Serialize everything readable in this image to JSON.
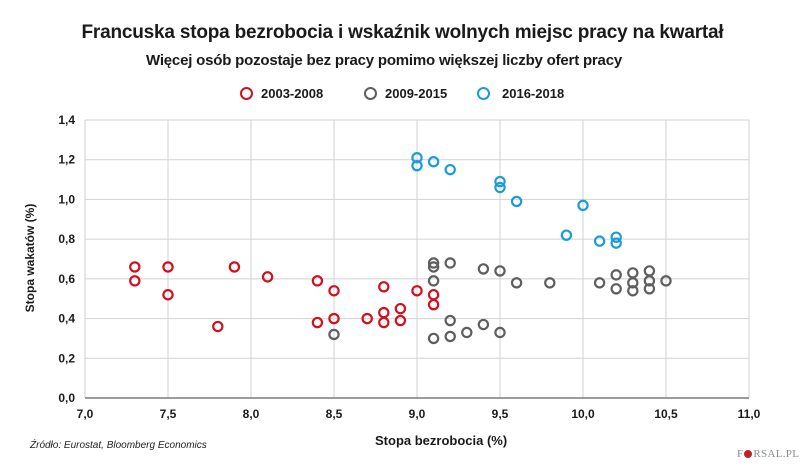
{
  "chart_data": {
    "type": "scatter",
    "title": "Francuska stopa bezrobocia i wskaźnik wolnych miejsc pracy na kwartał",
    "subtitle": "Więcej osób pozostaje bez pracy pomimo większej liczby ofert pracy",
    "xlabel": "Stopa bezrobocia (%)",
    "ylabel": "Stopa wakatów (%)",
    "xlim": [
      7.0,
      11.0
    ],
    "ylim": [
      0.0,
      1.4
    ],
    "xticks": [
      "7,0",
      "7,5",
      "8,0",
      "8,5",
      "9,0",
      "9,5",
      "10,0",
      "10,5",
      "11,0"
    ],
    "xtick_values": [
      7.0,
      7.5,
      8.0,
      8.5,
      9.0,
      9.5,
      10.0,
      10.5,
      11.0
    ],
    "yticks": [
      "0,0",
      "0,2",
      "0,4",
      "0,6",
      "0,8",
      "1,0",
      "1,2",
      "1,4"
    ],
    "ytick_values": [
      0.0,
      0.2,
      0.4,
      0.6,
      0.8,
      1.0,
      1.2,
      1.4
    ],
    "grid": true,
    "legend_position": "top-center",
    "series": [
      {
        "name": "2003-2008",
        "color": "#d0101e",
        "points": [
          [
            7.3,
            0.66
          ],
          [
            7.3,
            0.59
          ],
          [
            7.5,
            0.66
          ],
          [
            7.5,
            0.52
          ],
          [
            7.8,
            0.36
          ],
          [
            7.9,
            0.66
          ],
          [
            8.1,
            0.61
          ],
          [
            8.4,
            0.59
          ],
          [
            8.4,
            0.38
          ],
          [
            8.5,
            0.54
          ],
          [
            8.5,
            0.4
          ],
          [
            8.7,
            0.4
          ],
          [
            8.8,
            0.56
          ],
          [
            8.8,
            0.43
          ],
          [
            8.8,
            0.38
          ],
          [
            8.9,
            0.45
          ],
          [
            8.9,
            0.39
          ],
          [
            9.0,
            0.54
          ],
          [
            9.1,
            0.52
          ],
          [
            9.1,
            0.47
          ]
        ]
      },
      {
        "name": "2009-2015",
        "color": "#5e5e5e",
        "points": [
          [
            8.5,
            0.32
          ],
          [
            9.1,
            0.68
          ],
          [
            9.1,
            0.66
          ],
          [
            9.1,
            0.59
          ],
          [
            9.1,
            0.3
          ],
          [
            9.2,
            0.68
          ],
          [
            9.2,
            0.39
          ],
          [
            9.2,
            0.31
          ],
          [
            9.3,
            0.33
          ],
          [
            9.4,
            0.65
          ],
          [
            9.4,
            0.37
          ],
          [
            9.5,
            0.64
          ],
          [
            9.5,
            0.33
          ],
          [
            9.6,
            0.58
          ],
          [
            9.8,
            0.58
          ],
          [
            10.1,
            0.58
          ],
          [
            10.2,
            0.62
          ],
          [
            10.2,
            0.55
          ],
          [
            10.3,
            0.63
          ],
          [
            10.3,
            0.58
          ],
          [
            10.3,
            0.54
          ],
          [
            10.4,
            0.64
          ],
          [
            10.4,
            0.59
          ],
          [
            10.4,
            0.55
          ],
          [
            10.5,
            0.59
          ]
        ]
      },
      {
        "name": "2016-2018",
        "color": "#1a9cd8",
        "points": [
          [
            9.0,
            1.21
          ],
          [
            9.0,
            1.17
          ],
          [
            9.1,
            1.19
          ],
          [
            9.2,
            1.15
          ],
          [
            9.5,
            1.09
          ],
          [
            9.5,
            1.06
          ],
          [
            9.6,
            0.99
          ],
          [
            9.9,
            0.82
          ],
          [
            10.0,
            0.97
          ],
          [
            10.1,
            0.79
          ],
          [
            10.2,
            0.81
          ],
          [
            10.2,
            0.78
          ]
        ]
      }
    ]
  },
  "footer": {
    "source": "Źródło:  Eurostat, Bloomberg Economics",
    "logo_left": "F",
    "logo_right": "RSAL.PL"
  }
}
